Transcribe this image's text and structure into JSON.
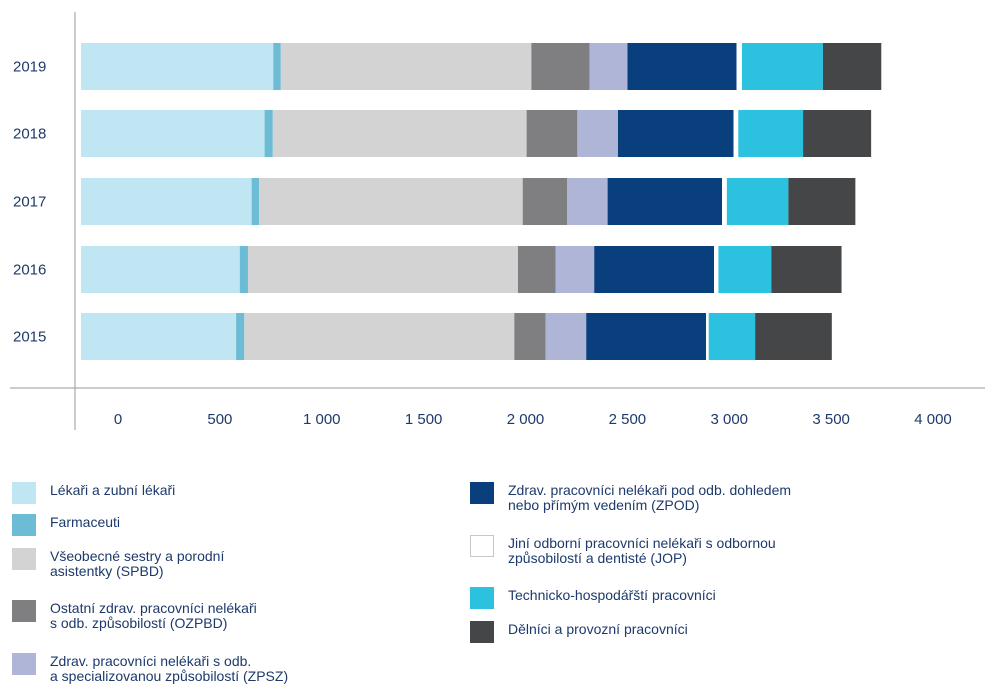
{
  "chart_data": {
    "type": "bar",
    "orientation": "horizontal",
    "stacked": true,
    "categories": [
      "2019",
      "2018",
      "2017",
      "2016",
      "2015"
    ],
    "xlim": [
      0,
      4000
    ],
    "x_ticks": [
      0,
      500,
      1000,
      1500,
      2000,
      2500,
      3000,
      3500,
      4000
    ],
    "x_tick_labels": [
      "0",
      "500",
      "1 000",
      "1 500",
      "2 000",
      "2 500",
      "3 000",
      "3 500",
      "4 000"
    ],
    "grid": false,
    "legend_position": "bottom",
    "series": [
      {
        "name": "Lékaři a zubní lékaři",
        "color": "#bfe6f2",
        "values": [
          890,
          850,
          790,
          735,
          718
        ]
      },
      {
        "name": "Farmaceuti",
        "color": "#6cbcd5",
        "values": [
          35,
          38,
          35,
          38,
          38
        ]
      },
      {
        "name": "Všeobecné sestry a porodní\nasistentky (SPBD)",
        "color": "#d3d3d4",
        "values": [
          1160,
          1175,
          1220,
          1250,
          1250
        ]
      },
      {
        "name": "Ostatní zdrav. pracovníci nelékaři\ns odb. způsobilostí (OZPBD)",
        "color": "#7f7f82",
        "values": [
          270,
          235,
          205,
          175,
          145
        ]
      },
      {
        "name": "Zdrav. pracovníci nelékaři s odb.\na specializovanou způsobilostí (ZPSZ)",
        "color": "#aeb5d6",
        "values": [
          175,
          188,
          188,
          178,
          188
        ]
      },
      {
        "name": "Zdrav. pracovníci nelékaři pod odb. dohledem\nnebo přímým vedením (ZPOD)",
        "color": "#0a3f7e",
        "values": [
          505,
          535,
          530,
          555,
          555
        ]
      },
      {
        "name": "Jiní odborní pracovníci nelékaři s odbornou\nzpůsobilostí a dentisté (JOP)",
        "color": "#ffffff",
        "values": [
          25,
          22,
          22,
          20,
          12
        ]
      },
      {
        "name": "Technicko-hospodářští pracovníci",
        "color": "#2cc2df",
        "values": [
          375,
          300,
          285,
          245,
          215
        ]
      },
      {
        "name": "Dělníci a provozní pracovníci",
        "color": "#454648",
        "values": [
          270,
          315,
          310,
          325,
          355
        ]
      }
    ]
  }
}
